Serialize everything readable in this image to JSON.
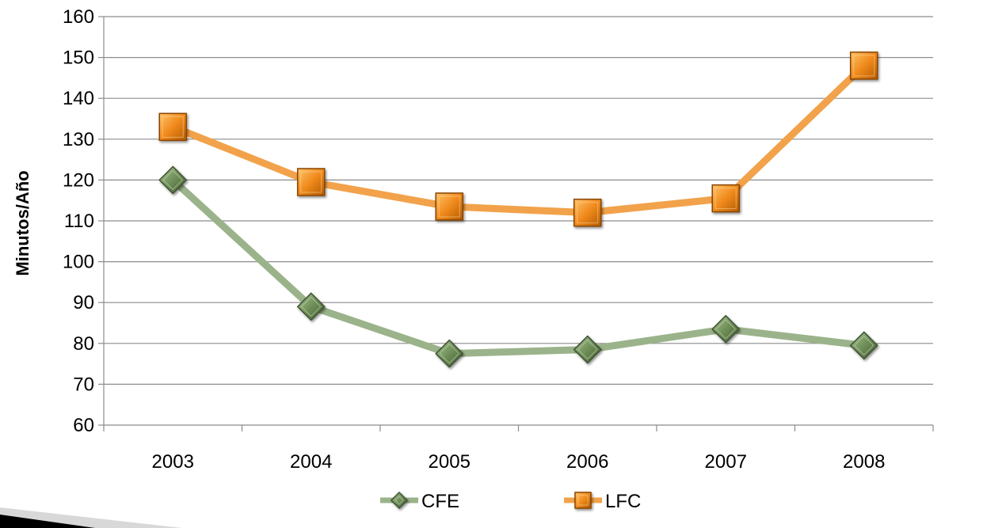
{
  "chart_data": {
    "type": "line",
    "title": "",
    "xlabel": "",
    "ylabel": "Minutos/Año",
    "categories": [
      "2003",
      "2004",
      "2005",
      "2006",
      "2007",
      "2008"
    ],
    "ylim": [
      60,
      160
    ],
    "yticks": [
      60,
      70,
      80,
      90,
      100,
      110,
      120,
      130,
      140,
      150,
      160
    ],
    "grid": true,
    "legend_position": "bottom",
    "series": [
      {
        "name": "CFE",
        "values": [
          120,
          89,
          77.5,
          78.5,
          83.5,
          79.5
        ],
        "line_color": "#9bb38a",
        "marker": "diamond",
        "marker_color": "#6a8a52"
      },
      {
        "name": "LFC",
        "values": [
          133,
          119.5,
          113.5,
          112,
          115.5,
          148
        ],
        "line_color": "#f2a24a",
        "marker": "square",
        "marker_color": "#e07a10"
      }
    ]
  }
}
